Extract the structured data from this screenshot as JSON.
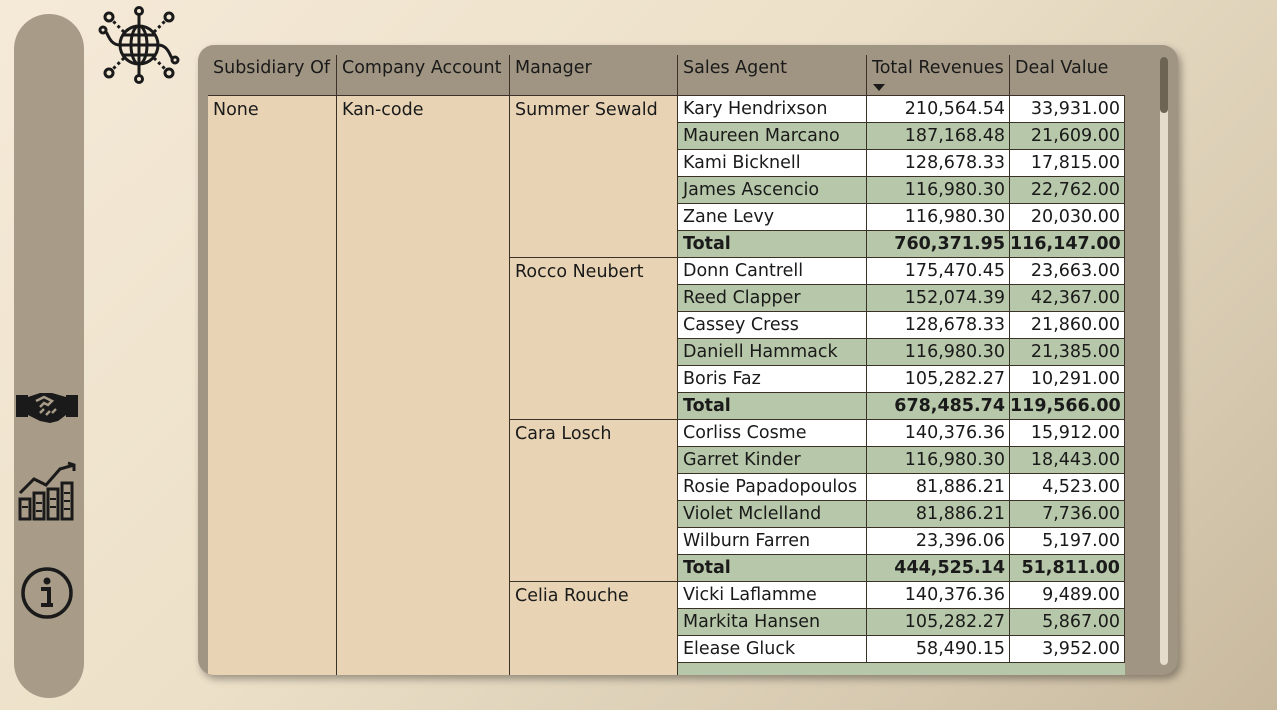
{
  "columns": {
    "subsidiary_of": "Subsidiary Of",
    "company_account": "Company Account",
    "manager": "Manager",
    "sales_agent": "Sales Agent",
    "total_revenues": "Total Revenues",
    "deal_value": "Deal Value"
  },
  "sort": {
    "column": "Total Revenues",
    "direction": "descending"
  },
  "group": {
    "subsidiary_of": "None",
    "company_account": "Kan-code"
  },
  "managers": [
    {
      "name": "Summer Sewald",
      "rows": [
        {
          "agent": "Kary Hendrixson",
          "rev": "210,564.54",
          "deal": "33,931.00"
        },
        {
          "agent": "Maureen Marcano",
          "rev": "187,168.48",
          "deal": "21,609.00"
        },
        {
          "agent": "Kami Bicknell",
          "rev": "128,678.33",
          "deal": "17,815.00"
        },
        {
          "agent": "James Ascencio",
          "rev": "116,980.30",
          "deal": "22,762.00"
        },
        {
          "agent": "Zane Levy",
          "rev": "116,980.30",
          "deal": "20,030.00"
        },
        {
          "agent": "Total",
          "rev": "760,371.95",
          "deal": "116,147.00",
          "total": true
        }
      ]
    },
    {
      "name": "Rocco Neubert",
      "rows": [
        {
          "agent": "Donn Cantrell",
          "rev": "175,470.45",
          "deal": "23,663.00"
        },
        {
          "agent": "Reed Clapper",
          "rev": "152,074.39",
          "deal": "42,367.00"
        },
        {
          "agent": "Cassey Cress",
          "rev": "128,678.33",
          "deal": "21,860.00"
        },
        {
          "agent": "Daniell Hammack",
          "rev": "116,980.30",
          "deal": "21,385.00"
        },
        {
          "agent": "Boris Faz",
          "rev": "105,282.27",
          "deal": "10,291.00"
        },
        {
          "agent": "Total",
          "rev": "678,485.74",
          "deal": "119,566.00",
          "total": true
        }
      ]
    },
    {
      "name": "Cara Losch",
      "rows": [
        {
          "agent": "Corliss Cosme",
          "rev": "140,376.36",
          "deal": "15,912.00"
        },
        {
          "agent": "Garret Kinder",
          "rev": "116,980.30",
          "deal": "18,443.00"
        },
        {
          "agent": "Rosie Papadopoulos",
          "rev": "81,886.21",
          "deal": "4,523.00"
        },
        {
          "agent": "Violet Mclelland",
          "rev": "81,886.21",
          "deal": "7,736.00"
        },
        {
          "agent": "Wilburn Farren",
          "rev": "23,396.06",
          "deal": "5,197.00"
        },
        {
          "agent": "Total",
          "rev": "444,525.14",
          "deal": "51,811.00",
          "total": true
        }
      ]
    },
    {
      "name": "Celia Rouche",
      "rows": [
        {
          "agent": "Vicki Laflamme",
          "rev": "140,376.36",
          "deal": "9,489.00"
        },
        {
          "agent": "Markita Hansen",
          "rev": "105,282.27",
          "deal": "5,867.00"
        },
        {
          "agent": "Elease Gluck",
          "rev": "58,490.15",
          "deal": "3,952.00"
        }
      ]
    }
  ],
  "nav": [
    {
      "icon": "handshake-icon"
    },
    {
      "icon": "growth-chart-icon"
    },
    {
      "icon": "info-icon"
    }
  ],
  "logo": {
    "icon": "globe-network-icon"
  }
}
